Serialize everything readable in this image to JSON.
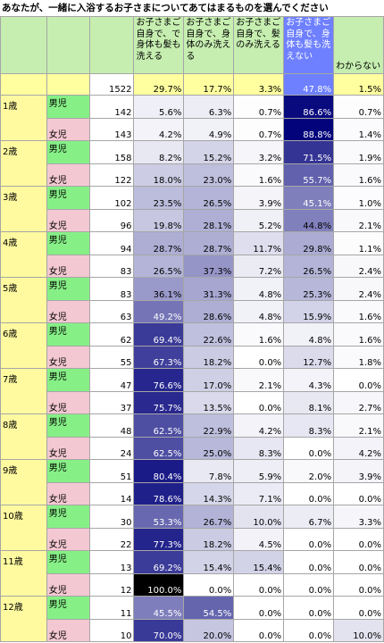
{
  "chart_data": {
    "type": "table",
    "title": "あなたが、一緒に入浴するお子さまについてあてはまるものを選んでください",
    "columns": [
      "お子さまご自身で、で身体も髪も洗える",
      "お子さまご自身で、身体のみ洗える",
      "お子さまご自身で、髪のみ洗える",
      "お子さまご自身で、身体も髪も洗えない",
      "わからない"
    ],
    "total": {
      "n": "1522",
      "values": [
        "29.7%",
        "17.7%",
        "3.3%",
        "47.8%",
        "1.5%"
      ]
    },
    "groups": [
      {
        "age": "1歳",
        "rows": [
          {
            "gender": "男児",
            "n": "142",
            "values": [
              "5.6%",
              "6.3%",
              "0.7%",
              "86.6%",
              "0.7%"
            ]
          },
          {
            "gender": "女児",
            "n": "143",
            "values": [
              "4.2%",
              "4.9%",
              "0.7%",
              "88.8%",
              "1.4%"
            ]
          }
        ]
      },
      {
        "age": "2歳",
        "rows": [
          {
            "gender": "男児",
            "n": "158",
            "values": [
              "8.2%",
              "15.2%",
              "3.2%",
              "71.5%",
              "1.9%"
            ]
          },
          {
            "gender": "女児",
            "n": "122",
            "values": [
              "18.0%",
              "23.0%",
              "1.6%",
              "55.7%",
              "1.6%"
            ]
          }
        ]
      },
      {
        "age": "3歳",
        "rows": [
          {
            "gender": "男児",
            "n": "102",
            "values": [
              "23.5%",
              "26.5%",
              "3.9%",
              "45.1%",
              "1.0%"
            ]
          },
          {
            "gender": "女児",
            "n": "96",
            "values": [
              "19.8%",
              "28.1%",
              "5.2%",
              "44.8%",
              "2.1%"
            ]
          }
        ]
      },
      {
        "age": "4歳",
        "rows": [
          {
            "gender": "男児",
            "n": "94",
            "values": [
              "28.7%",
              "28.7%",
              "11.7%",
              "29.8%",
              "1.1%"
            ]
          },
          {
            "gender": "女児",
            "n": "83",
            "values": [
              "26.5%",
              "37.3%",
              "7.2%",
              "26.5%",
              "2.4%"
            ]
          }
        ]
      },
      {
        "age": "5歳",
        "rows": [
          {
            "gender": "男児",
            "n": "83",
            "values": [
              "36.1%",
              "31.3%",
              "4.8%",
              "25.3%",
              "2.4%"
            ]
          },
          {
            "gender": "女児",
            "n": "63",
            "values": [
              "49.2%",
              "28.6%",
              "4.8%",
              "15.9%",
              "1.6%"
            ]
          }
        ]
      },
      {
        "age": "6歳",
        "rows": [
          {
            "gender": "男児",
            "n": "62",
            "values": [
              "69.4%",
              "22.6%",
              "1.6%",
              "4.8%",
              "1.6%"
            ]
          },
          {
            "gender": "女児",
            "n": "55",
            "values": [
              "67.3%",
              "18.2%",
              "0.0%",
              "12.7%",
              "1.8%"
            ]
          }
        ]
      },
      {
        "age": "7歳",
        "rows": [
          {
            "gender": "男児",
            "n": "47",
            "values": [
              "76.6%",
              "17.0%",
              "2.1%",
              "4.3%",
              "0.0%"
            ]
          },
          {
            "gender": "女児",
            "n": "37",
            "values": [
              "75.7%",
              "13.5%",
              "0.0%",
              "8.1%",
              "2.7%"
            ]
          }
        ]
      },
      {
        "age": "8歳",
        "rows": [
          {
            "gender": "男児",
            "n": "48",
            "values": [
              "62.5%",
              "22.9%",
              "4.2%",
              "8.3%",
              "2.1%"
            ]
          },
          {
            "gender": "女児",
            "n": "24",
            "values": [
              "62.5%",
              "25.0%",
              "8.3%",
              "0.0%",
              "4.2%"
            ]
          }
        ]
      },
      {
        "age": "9歳",
        "rows": [
          {
            "gender": "男児",
            "n": "51",
            "values": [
              "80.4%",
              "7.8%",
              "5.9%",
              "2.0%",
              "3.9%"
            ]
          },
          {
            "gender": "女児",
            "n": "14",
            "values": [
              "78.6%",
              "14.3%",
              "7.1%",
              "0.0%",
              "0.0%"
            ]
          }
        ]
      },
      {
        "age": "10歳",
        "rows": [
          {
            "gender": "男児",
            "n": "30",
            "values": [
              "53.3%",
              "26.7%",
              "10.0%",
              "6.7%",
              "3.3%"
            ]
          },
          {
            "gender": "女児",
            "n": "22",
            "values": [
              "77.3%",
              "18.2%",
              "4.5%",
              "0.0%",
              "0.0%"
            ]
          }
        ]
      },
      {
        "age": "11歳",
        "rows": [
          {
            "gender": "男児",
            "n": "13",
            "values": [
              "69.2%",
              "15.4%",
              "15.4%",
              "0.0%",
              "0.0%"
            ]
          },
          {
            "gender": "女児",
            "n": "12",
            "values": [
              "100.0%",
              "0.0%",
              "0.0%",
              "0.0%",
              "0.0%"
            ]
          }
        ]
      },
      {
        "age": "12歳",
        "rows": [
          {
            "gender": "男児",
            "n": "11",
            "values": [
              "45.5%",
              "54.5%",
              "0.0%",
              "0.0%",
              "0.0%"
            ]
          },
          {
            "gender": "女児",
            "n": "10",
            "values": [
              "70.0%",
              "20.0%",
              "0.0%",
              "0.0%",
              "10.0%"
            ]
          }
        ]
      }
    ]
  },
  "header_lines": [
    [
      "お子さまご",
      "自身で、で",
      "身体も髪も",
      "洗える"
    ],
    [
      "お子さまご",
      "自身で、身",
      "体のみ洗え",
      "る"
    ],
    [
      "お子さまご",
      "自身で、髪",
      "のみ洗える"
    ],
    [
      "お子さまご",
      "自身で、身",
      "体も髪も洗",
      "えない"
    ],
    [
      "わからない"
    ]
  ],
  "colors": {
    "header": "#c6eeb0",
    "header_highlight": "#6e80ff",
    "total_row": "#ffffa0",
    "age_cell": "#fffaa0",
    "boy_label": "#86f086",
    "girl_label": "#f4c8d2",
    "heat_low": "#ffffff",
    "heat_high": "#00007a",
    "heat_peak": "#000000"
  }
}
